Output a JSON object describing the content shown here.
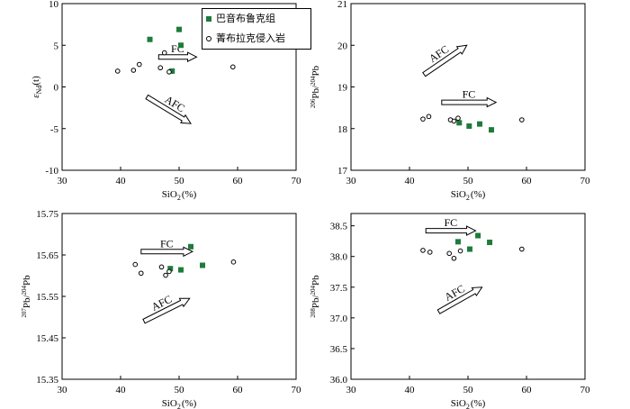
{
  "chart_data": [
    {
      "type": "scatter",
      "id": "p1",
      "xlabel": {
        "main": "SiO",
        "sub": "2",
        "unit": "(%)"
      },
      "ylabel": {
        "pre": "ε",
        "sub": "Nd",
        "post": "(t)"
      },
      "xlim": [
        30,
        70
      ],
      "ylim": [
        -10,
        10
      ],
      "xticks": [
        30,
        40,
        50,
        60,
        70
      ],
      "yticks": [
        -10,
        -5,
        0,
        5,
        10
      ],
      "series": [
        {
          "name": "巴音布鲁克组",
          "marker": "square",
          "color": "#1e7b3c",
          "points": [
            [
              45,
              5.7
            ],
            [
              50,
              6.9
            ],
            [
              50.3,
              5.0
            ],
            [
              48.8,
              1.9
            ]
          ]
        },
        {
          "name": "菁布拉克侵入岩",
          "marker": "circle",
          "color": "#000000",
          "points": [
            [
              39.5,
              1.9
            ],
            [
              42.2,
              2.0
            ],
            [
              43.2,
              2.7
            ],
            [
              46.8,
              2.3
            ],
            [
              47.5,
              4.1
            ],
            [
              48.3,
              1.8
            ],
            [
              59.2,
              2.4
            ]
          ]
        }
      ],
      "annotations": [
        {
          "text": "FC",
          "arrow_from": [
            46.5,
            3.6
          ],
          "arrow_to": [
            53,
            3.6
          ]
        },
        {
          "text": "AFC",
          "arrow_from": [
            44.5,
            -1.2
          ],
          "arrow_to": [
            52,
            -4.4
          ]
        }
      ]
    },
    {
      "type": "scatter",
      "id": "p2",
      "xlabel": {
        "main": "SiO",
        "sub": "2",
        "unit": "(%)"
      },
      "ylabel": {
        "sup1": "206",
        "m1": "Pb/",
        "sup2": "204",
        "m2": "Pb"
      },
      "xlim": [
        30,
        70
      ],
      "ylim": [
        17,
        21
      ],
      "xticks": [
        30,
        40,
        50,
        60,
        70
      ],
      "yticks": [
        17,
        18,
        19,
        20,
        21
      ],
      "series": [
        {
          "name": "巴音布鲁克组",
          "marker": "square",
          "color": "#1e7b3c",
          "points": [
            [
              48.5,
              18.14
            ],
            [
              50.2,
              18.06
            ],
            [
              52,
              18.11
            ],
            [
              54,
              17.97
            ]
          ]
        },
        {
          "name": "菁布拉克侵入岩",
          "marker": "circle",
          "color": "#000000",
          "points": [
            [
              42.3,
              18.23
            ],
            [
              43.3,
              18.29
            ],
            [
              47,
              18.21
            ],
            [
              47.6,
              18.18
            ],
            [
              48.3,
              18.25
            ],
            [
              59.2,
              18.21
            ]
          ]
        }
      ],
      "annotations": [
        {
          "text": "AFC",
          "arrow_from": [
            42.5,
            19.3
          ],
          "arrow_to": [
            49.8,
            20.0
          ]
        },
        {
          "text": "FC",
          "arrow_from": [
            45.5,
            18.63
          ],
          "arrow_to": [
            54.8,
            18.63
          ]
        }
      ]
    },
    {
      "type": "scatter",
      "id": "p3",
      "xlabel": {
        "main": "SiO",
        "sub": "2",
        "unit": "(%)"
      },
      "ylabel": {
        "sup1": "207",
        "m1": "Pb/",
        "sup2": "204",
        "m2": "Pb"
      },
      "xlim": [
        30,
        70
      ],
      "ylim": [
        15.35,
        15.75
      ],
      "xticks": [
        30,
        40,
        50,
        60,
        70
      ],
      "yticks": [
        15.35,
        15.45,
        15.55,
        15.65,
        15.75
      ],
      "series": [
        {
          "name": "巴音布鲁克组",
          "marker": "square",
          "color": "#1e7b3c",
          "points": [
            [
              48.5,
              15.617
            ],
            [
              50.3,
              15.614
            ],
            [
              52,
              15.67
            ],
            [
              54,
              15.625
            ]
          ]
        },
        {
          "name": "菁布拉克侵入岩",
          "marker": "circle",
          "color": "#000000",
          "points": [
            [
              42.5,
              15.627
            ],
            [
              43.5,
              15.606
            ],
            [
              47,
              15.621
            ],
            [
              47.7,
              15.601
            ],
            [
              48.3,
              15.61
            ],
            [
              59.3,
              15.633
            ]
          ]
        }
      ],
      "annotations": [
        {
          "text": "FC",
          "arrow_from": [
            43.5,
            15.658
          ],
          "arrow_to": [
            52.3,
            15.658
          ]
        },
        {
          "text": "AFC",
          "arrow_from": [
            44,
            15.49
          ],
          "arrow_to": [
            51.8,
            15.545
          ]
        }
      ]
    },
    {
      "type": "scatter",
      "id": "p4",
      "xlabel": {
        "main": "SiO",
        "sub": "2",
        "unit": "(%)"
      },
      "ylabel": {
        "sup1": "208",
        "m1": "Pb/",
        "sup2": "204",
        "m2": "Pb"
      },
      "xlim": [
        30,
        70
      ],
      "ylim": [
        36,
        38.7
      ],
      "xticks": [
        30,
        40,
        50,
        60,
        70
      ],
      "yticks": [
        36.0,
        36.5,
        37.0,
        37.5,
        38.0,
        38.5
      ],
      "series": [
        {
          "name": "巴音布鲁克组",
          "marker": "square",
          "color": "#1e7b3c",
          "points": [
            [
              48.3,
              38.24
            ],
            [
              50.3,
              38.12
            ],
            [
              51.7,
              38.34
            ],
            [
              53.7,
              38.23
            ]
          ]
        },
        {
          "name": "菁布拉克侵入岩",
          "marker": "circle",
          "color": "#000000",
          "points": [
            [
              42.3,
              38.1
            ],
            [
              43.5,
              38.07
            ],
            [
              46.8,
              38.05
            ],
            [
              47.6,
              37.97
            ],
            [
              48.7,
              38.09
            ],
            [
              59.2,
              38.12
            ]
          ]
        }
      ],
      "annotations": [
        {
          "text": "FC",
          "arrow_from": [
            42.8,
            38.42
          ],
          "arrow_to": [
            51.3,
            38.42
          ]
        },
        {
          "text": "AFC",
          "arrow_from": [
            45,
            37.1
          ],
          "arrow_to": [
            52.4,
            37.5
          ]
        }
      ]
    }
  ]
}
